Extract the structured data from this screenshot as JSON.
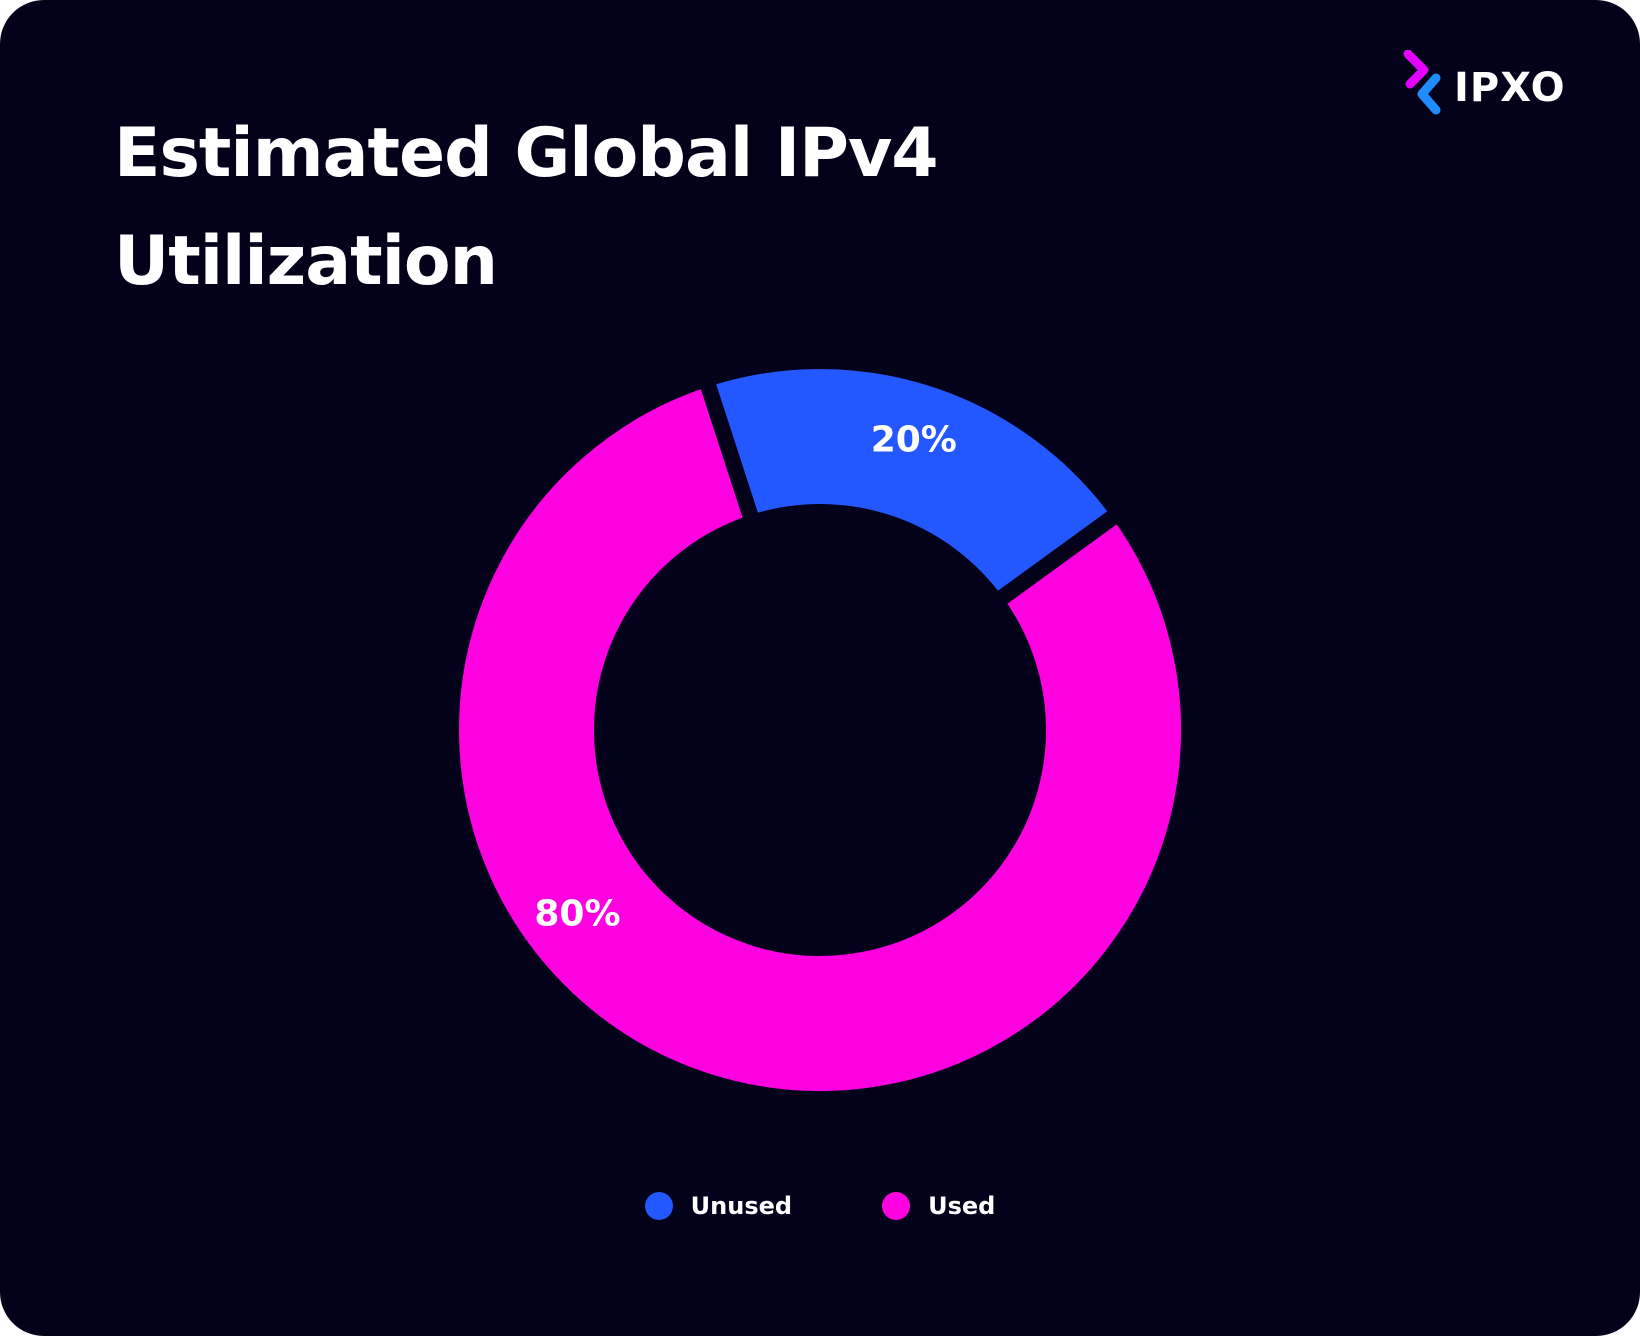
{
  "brand": {
    "name": "IPXO",
    "icon": "ipxo-logo-icon"
  },
  "colors": {
    "background": "#03021a",
    "unused": "#2357ff",
    "used": "#ff00e1",
    "logo_magenta": "#e400ff",
    "logo_blue": "#1f8cff"
  },
  "chart_data": {
    "type": "pie",
    "title": "Estimated Global IPv4\nUtilization",
    "donut": true,
    "slices": [
      {
        "name": "Unused",
        "value": 20,
        "label": "20%",
        "color": "#2357ff"
      },
      {
        "name": "Used",
        "value": 80,
        "label": "80%",
        "color": "#ff00e1"
      }
    ],
    "legend_placement": "bottom"
  }
}
